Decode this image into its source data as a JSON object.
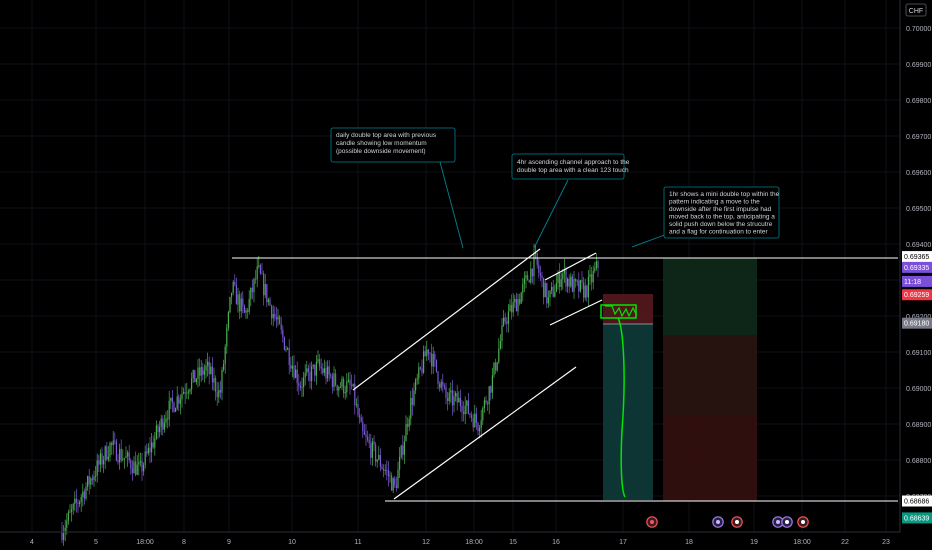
{
  "chart_data": {
    "type": "candlestick",
    "currency": "CHF",
    "ylim": [
      0.68655,
      0.7006
    ],
    "x_tick_labels": [
      {
        "t": 0.0,
        "label": "4"
      },
      {
        "t": 2.0,
        "label": "5"
      },
      {
        "t": 3.0,
        "label": "18:00"
      },
      {
        "t": 6.0,
        "label": "8"
      },
      {
        "t": 8.0,
        "label": "9"
      },
      {
        "t": 9.0,
        "label": "10"
      },
      {
        "t": 10.0,
        "label": "11"
      },
      {
        "t": 11.0,
        "label": "12"
      },
      {
        "t": 12.0,
        "label": "18:00"
      },
      {
        "t": 13.0,
        "label": "15"
      },
      {
        "t": 14.0,
        "label": "16"
      },
      {
        "t": 15.0,
        "label": "17"
      },
      {
        "t": 16.0,
        "label": "18"
      },
      {
        "t": 17.0,
        "label": "19"
      },
      {
        "t": 18.0,
        "label": "18:00"
      },
      {
        "t": 19.0,
        "label": "22"
      },
      {
        "t": 20.0,
        "label": "23"
      }
    ],
    "y_tick_labels": [
      "0.70000",
      "0.69900",
      "0.69800",
      "0.69700",
      "0.69600",
      "0.69500",
      "0.69400",
      "0.69300",
      "0.69200",
      "0.69100",
      "0.69000",
      "0.68900",
      "0.68800",
      "0.68700"
    ],
    "price_markers": [
      {
        "label": "0.69365",
        "value": 0.69365,
        "bg": "#ffffff",
        "fg": "#000000"
      },
      {
        "label": "0.69335",
        "value": 0.69335,
        "bg": "#7b4fd9",
        "fg": "#ffffff"
      },
      {
        "label": "11:18",
        "value": 0.69296,
        "bg": "#7b4fd9",
        "fg": "#ffffff"
      },
      {
        "label": "0.69259",
        "value": 0.69259,
        "bg": "#f23645",
        "fg": "#ffffff"
      },
      {
        "label": "0.69180",
        "value": 0.6918,
        "bg": "#787b86",
        "fg": "#ffffff"
      },
      {
        "label": "0.68639",
        "value": 0.68639,
        "bg": "#089981",
        "fg": "#ffffff"
      },
      {
        "label": "0.68686",
        "value": 0.68686,
        "bg": "#ffffff",
        "fg": "#000000"
      }
    ],
    "horizontal_levels": [
      {
        "name": "double-top-resistance",
        "value": 0.69365
      },
      {
        "name": "support-low",
        "value": 0.68686
      }
    ],
    "annotations": [
      {
        "name": "daily-note",
        "lines": [
          "daily double top area with previous",
          "candle showing low momentum",
          "(possible downside movement)"
        ]
      },
      {
        "name": "4hr-note",
        "lines": [
          "4hr ascending channel approach to the",
          "double top area with a clean 123 touch"
        ]
      },
      {
        "name": "1hr-note",
        "lines": [
          "1hr shows a mini double top within the",
          "pattern indicating a move to the",
          "downside after the first impulse had",
          "moved back to the top, anticipating a",
          "solid push down below the strucutre",
          "and a flag for continuation to enter"
        ]
      }
    ],
    "position": {
      "entry": 0.6918,
      "stop": 0.69259,
      "target": 0.68639
    },
    "events_count": 6,
    "colors": {
      "bull": "#4caf50",
      "bear": "#7b5bd6",
      "level": "#ffffff",
      "arrow": "#00838f",
      "projection": "#00e600"
    }
  }
}
